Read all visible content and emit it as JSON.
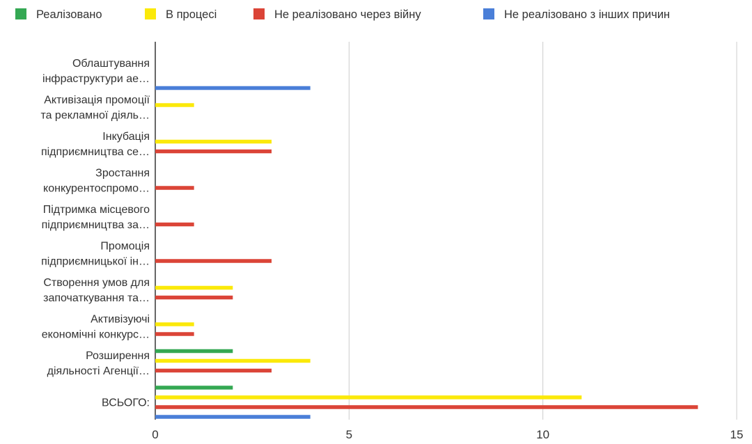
{
  "chart_data": {
    "type": "bar",
    "orientation": "horizontal",
    "legend_position": "top",
    "grid": true,
    "xlim": [
      0,
      15
    ],
    "xticks": [
      0,
      5,
      10,
      15
    ],
    "tick_labels": [
      "0",
      "5",
      "10",
      "15"
    ],
    "categories": [
      [
        "Облаштування",
        "інфраструктури ае…"
      ],
      [
        "Активізація промоції",
        "та рекламної діяль…"
      ],
      [
        "Інкубація",
        "підприємництва се…"
      ],
      [
        "Зростання",
        "конкурентоспромо…"
      ],
      [
        "Підтримка місцевого",
        "підприємництва за…"
      ],
      [
        "Промоція",
        "підприємницької ін…"
      ],
      [
        "Створення умов для",
        "започаткування та…"
      ],
      [
        "Активізуючі",
        "економічні конкурс…"
      ],
      [
        "Розширення",
        "діяльності Агенції…"
      ],
      [
        "ВСЬОГО:"
      ]
    ],
    "series": [
      {
        "name": "Реалізовано",
        "color": "#34a853",
        "values": [
          0,
          0,
          0,
          0,
          0,
          0,
          0,
          0,
          2,
          2
        ]
      },
      {
        "name": "В процесі",
        "color": "#fbe90a",
        "values": [
          0,
          1,
          3,
          0,
          0,
          0,
          2,
          1,
          4,
          11
        ]
      },
      {
        "name": "Не реалізовано через війну",
        "color": "#db4437",
        "values": [
          0,
          0,
          3,
          1,
          1,
          3,
          2,
          1,
          3,
          14
        ]
      },
      {
        "name": "Не реалізовано з інших причин",
        "color": "#4a7fd8",
        "values": [
          4,
          0,
          0,
          0,
          0,
          0,
          0,
          0,
          0,
          4
        ]
      }
    ]
  }
}
